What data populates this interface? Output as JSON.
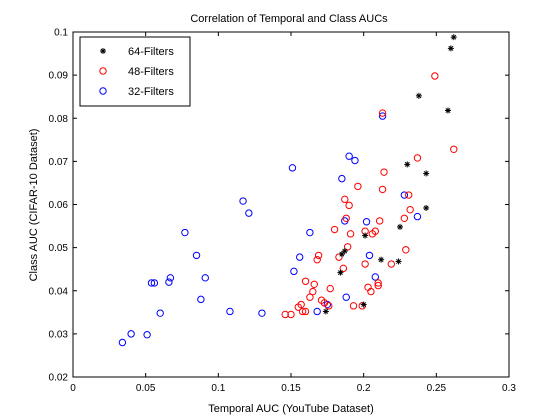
{
  "chart_data": {
    "type": "scatter",
    "title": "Correlation of Temporal and Class AUCs",
    "xlabel": "Temporal AUC (YouTube Dataset)",
    "ylabel": "Class AUC (CIFAR-10 Dataset)",
    "xlim": [
      0,
      0.3
    ],
    "ylim": [
      0.02,
      0.1
    ],
    "xticks": [
      "0",
      "0.05",
      "0.1",
      "0.15",
      "0.2",
      "0.25",
      "0.3"
    ],
    "xtick_values": [
      0,
      0.05,
      0.1,
      0.15,
      0.2,
      0.25,
      0.3
    ],
    "yticks": [
      "0.02",
      "0.03",
      "0.04",
      "0.05",
      "0.06",
      "0.07",
      "0.08",
      "0.09",
      "0.1"
    ],
    "ytick_values": [
      0.02,
      0.03,
      0.04,
      0.05,
      0.06,
      0.07,
      0.08,
      0.09,
      0.1
    ],
    "grid": false,
    "legend_position": "top-left",
    "series": [
      {
        "name": "64-Filters",
        "marker": "asterisk",
        "color": "#000000",
        "points": [
          [
            0.174,
            0.0352
          ],
          [
            0.184,
            0.0442
          ],
          [
            0.185,
            0.0485
          ],
          [
            0.187,
            0.0492
          ],
          [
            0.2,
            0.0368
          ],
          [
            0.201,
            0.0528
          ],
          [
            0.212,
            0.0472
          ],
          [
            0.224,
            0.0468
          ],
          [
            0.225,
            0.0548
          ],
          [
            0.23,
            0.0693
          ],
          [
            0.238,
            0.0852
          ],
          [
            0.243,
            0.0672
          ],
          [
            0.243,
            0.0592
          ],
          [
            0.258,
            0.0818
          ],
          [
            0.26,
            0.0962
          ],
          [
            0.262,
            0.0988
          ]
        ]
      },
      {
        "name": "48-Filters",
        "marker": "circle",
        "color": "#ff0000",
        "points": [
          [
            0.146,
            0.0345
          ],
          [
            0.15,
            0.0345
          ],
          [
            0.155,
            0.0362
          ],
          [
            0.157,
            0.0368
          ],
          [
            0.158,
            0.0352
          ],
          [
            0.16,
            0.0352
          ],
          [
            0.16,
            0.0422
          ],
          [
            0.163,
            0.0385
          ],
          [
            0.165,
            0.0398
          ],
          [
            0.166,
            0.0415
          ],
          [
            0.168,
            0.0472
          ],
          [
            0.169,
            0.0482
          ],
          [
            0.171,
            0.0378
          ],
          [
            0.173,
            0.0372
          ],
          [
            0.176,
            0.0365
          ],
          [
            0.177,
            0.0405
          ],
          [
            0.18,
            0.0542
          ],
          [
            0.183,
            0.0478
          ],
          [
            0.186,
            0.0452
          ],
          [
            0.187,
            0.0612
          ],
          [
            0.188,
            0.0568
          ],
          [
            0.189,
            0.0502
          ],
          [
            0.19,
            0.0598
          ],
          [
            0.191,
            0.0532
          ],
          [
            0.193,
            0.0365
          ],
          [
            0.196,
            0.0642
          ],
          [
            0.199,
            0.0365
          ],
          [
            0.201,
            0.0462
          ],
          [
            0.201,
            0.0538
          ],
          [
            0.203,
            0.0408
          ],
          [
            0.205,
            0.0398
          ],
          [
            0.206,
            0.0532
          ],
          [
            0.208,
            0.0538
          ],
          [
            0.21,
            0.0412
          ],
          [
            0.21,
            0.0418
          ],
          [
            0.211,
            0.0562
          ],
          [
            0.213,
            0.0635
          ],
          [
            0.213,
            0.0812
          ],
          [
            0.214,
            0.0675
          ],
          [
            0.219,
            0.0462
          ],
          [
            0.228,
            0.0568
          ],
          [
            0.229,
            0.0495
          ],
          [
            0.231,
            0.0622
          ],
          [
            0.232,
            0.0588
          ],
          [
            0.237,
            0.0708
          ],
          [
            0.249,
            0.0898
          ],
          [
            0.262,
            0.0728
          ]
        ]
      },
      {
        "name": "32-Filters",
        "marker": "circle",
        "color": "#0000ff",
        "points": [
          [
            0.034,
            0.028
          ],
          [
            0.04,
            0.03
          ],
          [
            0.051,
            0.0298
          ],
          [
            0.054,
            0.0418
          ],
          [
            0.056,
            0.0418
          ],
          [
            0.06,
            0.0348
          ],
          [
            0.066,
            0.042
          ],
          [
            0.067,
            0.043
          ],
          [
            0.077,
            0.0535
          ],
          [
            0.085,
            0.0482
          ],
          [
            0.088,
            0.038
          ],
          [
            0.091,
            0.043
          ],
          [
            0.108,
            0.0352
          ],
          [
            0.117,
            0.0608
          ],
          [
            0.121,
            0.058
          ],
          [
            0.13,
            0.0348
          ],
          [
            0.151,
            0.0685
          ],
          [
            0.152,
            0.0445
          ],
          [
            0.156,
            0.0478
          ],
          [
            0.163,
            0.0535
          ],
          [
            0.168,
            0.0352
          ],
          [
            0.175,
            0.0368
          ],
          [
            0.185,
            0.066
          ],
          [
            0.187,
            0.0562
          ],
          [
            0.188,
            0.0385
          ],
          [
            0.19,
            0.0712
          ],
          [
            0.194,
            0.0702
          ],
          [
            0.202,
            0.056
          ],
          [
            0.204,
            0.0482
          ],
          [
            0.208,
            0.0432
          ],
          [
            0.213,
            0.0805
          ],
          [
            0.228,
            0.0622
          ],
          [
            0.237,
            0.0572
          ]
        ]
      }
    ]
  }
}
